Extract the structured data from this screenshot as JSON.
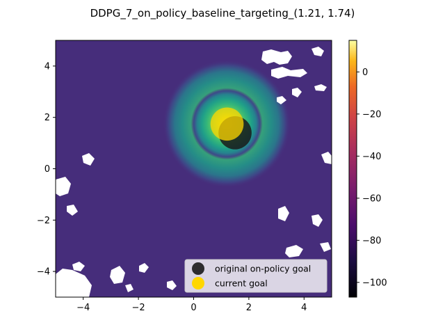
{
  "chart_data": {
    "type": "heatmap",
    "title": "DDPG_7_on_policy_baseline_targeting_(1.21, 1.74)",
    "xlabel": "",
    "ylabel": "",
    "xlim": [
      -5,
      5
    ],
    "ylim": [
      -5,
      5
    ],
    "x_ticks": [
      -4,
      -2,
      0,
      2,
      4
    ],
    "y_ticks": [
      -4,
      -2,
      0,
      2,
      4
    ],
    "x_tick_labels": [
      "−4",
      "−2",
      "0",
      "2",
      "4"
    ],
    "y_tick_labels": [
      "−4",
      "−2",
      "0",
      "2",
      "4"
    ],
    "grid": false,
    "colormap": "viridis",
    "colorbar": {
      "colormap": "inferno",
      "range": [
        -107,
        15
      ],
      "ticks": [
        0,
        -20,
        -40,
        -60,
        -80,
        -100
      ],
      "tick_labels": [
        "0",
        "−20",
        "−40",
        "−60",
        "−80",
        "−100"
      ]
    },
    "field": {
      "background_value": -80,
      "peak_value": 15,
      "peak_center": [
        1.2,
        1.75
      ]
    },
    "series": [
      {
        "name": "original on-policy goal",
        "x": 1.5,
        "y": 1.4,
        "color": "#1a1a1a"
      },
      {
        "name": "current goal",
        "x": 1.21,
        "y": 1.74,
        "color": "#ffd700"
      }
    ],
    "legend_position": "lower-right"
  }
}
